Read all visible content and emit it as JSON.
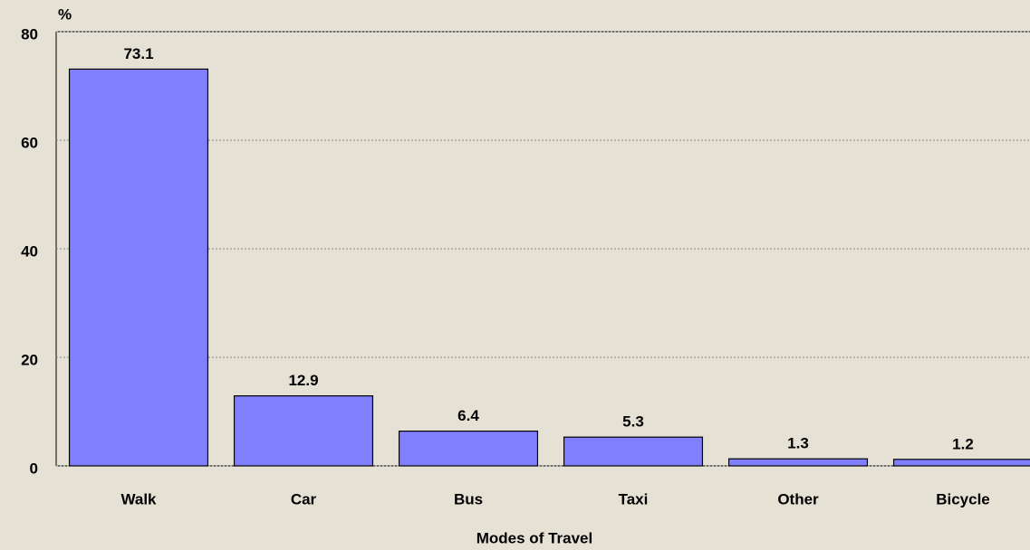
{
  "chart_data": {
    "type": "bar",
    "y_label": "%",
    "x_label": "Modes of Travel",
    "categories": [
      "Walk",
      "Car",
      "Bus",
      "Taxi",
      "Other",
      "Bicycle"
    ],
    "values": [
      73.1,
      12.9,
      6.4,
      5.3,
      1.3,
      1.2
    ],
    "color": "#8080ff",
    "ylim": [
      0,
      80
    ],
    "yticks": [
      0,
      20,
      40,
      60,
      80
    ],
    "grid": true
  }
}
